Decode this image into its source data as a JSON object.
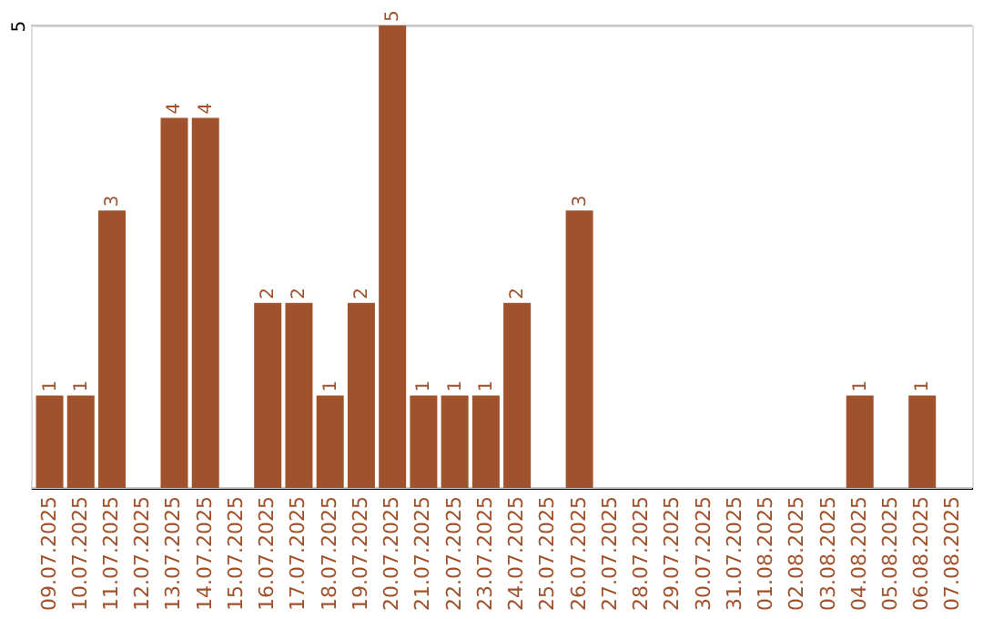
{
  "chart_data": {
    "type": "bar",
    "categories": [
      "09.07.2025",
      "10.07.2025",
      "11.07.2025",
      "12.07.2025",
      "13.07.2025",
      "14.07.2025",
      "15.07.2025",
      "16.07.2025",
      "17.07.2025",
      "18.07.2025",
      "19.07.2025",
      "20.07.2025",
      "21.07.2025",
      "22.07.2025",
      "23.07.2025",
      "24.07.2025",
      "25.07.2025",
      "26.07.2025",
      "27.07.2025",
      "28.07.2025",
      "29.07.2025",
      "30.07.2025",
      "31.07.2025",
      "01.08.2025",
      "02.08.2025",
      "03.08.2025",
      "04.08.2025",
      "05.08.2025",
      "06.08.2025",
      "07.08.2025"
    ],
    "values": [
      1,
      1,
      3,
      0,
      4,
      4,
      0,
      2,
      2,
      1,
      2,
      5,
      1,
      1,
      1,
      2,
      0,
      3,
      0,
      0,
      0,
      0,
      0,
      0,
      0,
      0,
      1,
      0,
      1,
      0
    ],
    "value_labels": [
      "1",
      "1",
      "3",
      null,
      "4",
      "4",
      null,
      "2",
      "2",
      "1",
      "2",
      "5",
      "1",
      "1",
      "1",
      "2",
      null,
      "3",
      null,
      null,
      null,
      null,
      null,
      null,
      null,
      null,
      "1",
      null,
      "1",
      null
    ],
    "color": "#a0522d",
    "ylim": [
      0,
      5
    ],
    "yticks": [
      {
        "value": 0,
        "label": null
      },
      5
    ],
    "grid": "y"
  }
}
